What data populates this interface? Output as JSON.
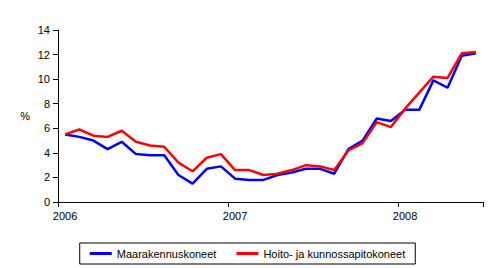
{
  "chart_data": {
    "type": "line",
    "ylabel": "%",
    "categories": [
      "2006",
      null,
      null,
      null,
      null,
      null,
      null,
      null,
      null,
      null,
      null,
      null,
      "2007",
      null,
      null,
      null,
      null,
      null,
      null,
      null,
      null,
      null,
      null,
      null,
      "2008",
      null,
      null,
      null,
      null,
      null
    ],
    "series": [
      {
        "name": "Maarakennuskoneet",
        "color": "#0000ff",
        "values": [
          5.5,
          5.3,
          5.0,
          4.3,
          4.9,
          3.9,
          3.8,
          3.8,
          2.2,
          1.5,
          2.7,
          2.9,
          1.9,
          1.8,
          1.8,
          2.2,
          2.4,
          2.7,
          2.7,
          2.3,
          4.3,
          5.0,
          6.8,
          6.6,
          7.5,
          7.5,
          9.9,
          9.3,
          11.9,
          12.1
        ]
      },
      {
        "name": "Hoito- ja kunnossapitokoneet",
        "color": "#ff0000",
        "values": [
          5.5,
          5.9,
          5.4,
          5.3,
          5.8,
          4.9,
          4.6,
          4.5,
          3.2,
          2.5,
          3.6,
          3.9,
          2.6,
          2.6,
          2.2,
          2.3,
          2.6,
          3.0,
          2.9,
          2.6,
          4.2,
          4.8,
          6.5,
          6.1,
          7.6,
          8.9,
          10.2,
          10.1,
          12.1,
          12.2
        ]
      }
    ],
    "ylim": [
      0,
      14
    ],
    "yticks": [
      0,
      2,
      4,
      6,
      8,
      10,
      12,
      14
    ],
    "grid": false,
    "legend": "bottom"
  }
}
